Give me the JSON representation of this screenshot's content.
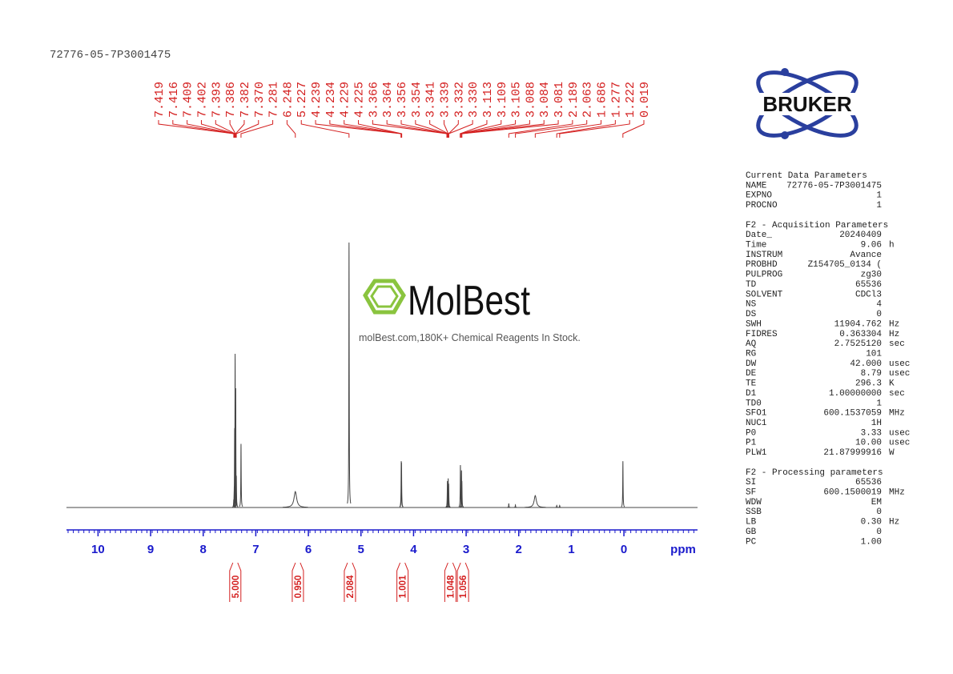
{
  "sample_id": "72776-05-7P3001475",
  "logo": "BRUKER",
  "watermark": {
    "brand": "MolBest",
    "tagline": "molBest.com,180K+ Chemical Reagents In Stock."
  },
  "chart_data": {
    "type": "spectrum",
    "x_label": "ppm",
    "xlim": [
      10.6,
      -1.4
    ],
    "xticks": [
      10,
      9,
      8,
      7,
      6,
      5,
      4,
      3,
      2,
      1,
      0
    ],
    "ylim": [
      0,
      100
    ],
    "color": "#444444",
    "label_color": "#d42020",
    "axis_color": "#1a1acc",
    "peak_labels": [
      "7.419",
      "7.416",
      "7.409",
      "7.402",
      "7.393",
      "7.386",
      "7.382",
      "7.370",
      "7.281",
      "6.248",
      "5.227",
      "4.239",
      "4.234",
      "4.229",
      "4.225",
      "3.366",
      "3.364",
      "3.356",
      "3.354",
      "3.341",
      "3.339",
      "3.332",
      "3.330",
      "3.113",
      "3.109",
      "3.105",
      "3.088",
      "3.084",
      "3.081",
      "2.189",
      "2.063",
      "1.686",
      "1.277",
      "1.222",
      "0.019"
    ],
    "peaks": {
      "x": [
        7.419,
        7.409,
        7.402,
        7.393,
        7.386,
        7.382,
        7.37,
        7.281,
        6.248,
        5.227,
        4.234,
        4.229,
        3.356,
        3.341,
        3.332,
        3.109,
        3.088,
        3.081,
        2.189,
        2.063,
        1.686,
        1.277,
        1.222,
        0.019
      ],
      "height": [
        3,
        8,
        30,
        58,
        40,
        45,
        12,
        24,
        6,
        100,
        17.5,
        17,
        10,
        11,
        9,
        16,
        14,
        10,
        1.5,
        1,
        4.5,
        0.8,
        0.8,
        17.5
      ],
      "width": [
        0.004,
        0.004,
        0.004,
        0.004,
        0.004,
        0.004,
        0.004,
        0.004,
        0.03,
        0.004,
        0.004,
        0.004,
        0.004,
        0.004,
        0.004,
        0.004,
        0.004,
        0.004,
        0.004,
        0.004,
        0.025,
        0.004,
        0.004,
        0.004
      ]
    },
    "integrals": {
      "x": [
        7.39,
        6.2,
        5.21,
        4.21,
        3.3,
        3.06
      ],
      "labels": [
        "5.000",
        "0.950",
        "2.084",
        "1.001",
        "1.048",
        "1.056"
      ]
    }
  },
  "parameters": [
    {
      "title": "Current Data Parameters",
      "rows": [
        [
          "NAME",
          "72776-05-7P3001475",
          ""
        ],
        [
          "EXPNO",
          "1",
          ""
        ],
        [
          "PROCNO",
          "1",
          ""
        ]
      ]
    },
    {
      "title": "F2 - Acquisition Parameters",
      "rows": [
        [
          "Date_",
          "20240409",
          ""
        ],
        [
          "Time",
          "9.06",
          "h"
        ],
        [
          "INSTRUM",
          "Avance",
          ""
        ],
        [
          "PROBHD",
          "Z154705_0134 (",
          ""
        ],
        [
          "PULPROG",
          "zg30",
          ""
        ],
        [
          "TD",
          "65536",
          ""
        ],
        [
          "SOLVENT",
          "CDCl3",
          ""
        ],
        [
          "NS",
          "4",
          ""
        ],
        [
          "DS",
          "0",
          ""
        ],
        [
          "SWH",
          "11904.762",
          "Hz"
        ],
        [
          "FIDRES",
          "0.363304",
          "Hz"
        ],
        [
          "AQ",
          "2.7525120",
          "sec"
        ],
        [
          "RG",
          "101",
          ""
        ],
        [
          "DW",
          "42.000",
          "usec"
        ],
        [
          "DE",
          "8.79",
          "usec"
        ],
        [
          "TE",
          "296.3",
          "K"
        ],
        [
          "D1",
          "1.00000000",
          "sec"
        ],
        [
          "TD0",
          "1",
          ""
        ],
        [
          "SFO1",
          "600.1537059",
          "MHz"
        ],
        [
          "NUC1",
          "1H",
          ""
        ],
        [
          "P0",
          "3.33",
          "usec"
        ],
        [
          "P1",
          "10.00",
          "usec"
        ],
        [
          "PLW1",
          "21.87999916",
          "W"
        ]
      ]
    },
    {
      "title": "F2 - Processing parameters",
      "rows": [
        [
          "SI",
          "65536",
          ""
        ],
        [
          "SF",
          "600.1500019",
          "MHz"
        ],
        [
          "WDW",
          "EM",
          ""
        ],
        [
          "SSB",
          "0",
          ""
        ],
        [
          "LB",
          "0.30",
          "Hz"
        ],
        [
          "GB",
          "0",
          ""
        ],
        [
          "PC",
          "1.00",
          ""
        ]
      ]
    }
  ]
}
